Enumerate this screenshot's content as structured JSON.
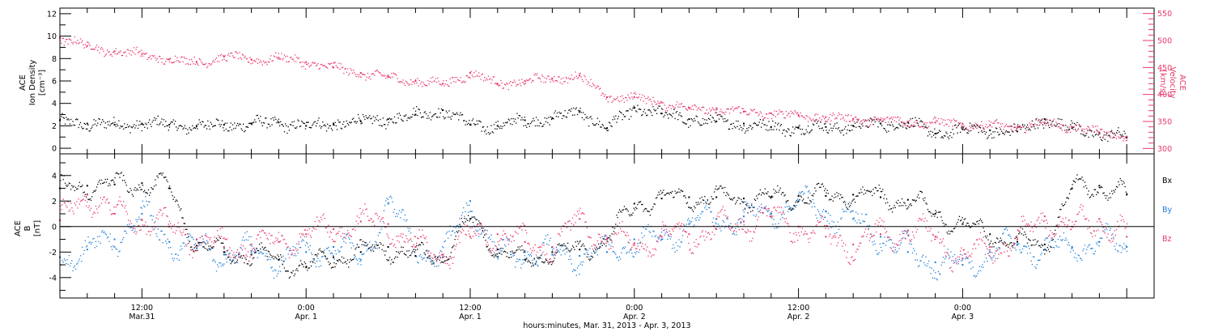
{
  "figure": {
    "xaxis_title": "hours:minutes, Mar. 31, 2013 - Apr.  3, 2013",
    "xticks": [
      {
        "hours": 12,
        "time": "12:00",
        "date": "Mar.31"
      },
      {
        "hours": 24,
        "time": "0:00",
        "date": "Apr. 1"
      },
      {
        "hours": 36,
        "time": "12:00",
        "date": "Apr. 1"
      },
      {
        "hours": 48,
        "time": "0:00",
        "date": "Apr. 2"
      },
      {
        "hours": 60,
        "time": "12:00",
        "date": "Apr. 2"
      },
      {
        "hours": 72,
        "time": "0:00",
        "date": "Apr. 3"
      }
    ]
  },
  "colors": {
    "density": "#000000",
    "velocity": "#e8386a",
    "bx": "#000000",
    "by": "#1e7fd6",
    "bz": "#e8386a"
  },
  "chart_data": [
    {
      "type": "scatter",
      "panel": "top",
      "x_units": "hours since Mar. 31, 2013 0:00",
      "xlim": [
        6,
        86
      ],
      "left_axis": {
        "label_lines": [
          "ACE",
          "Ion Density",
          "[cm⁻³]"
        ],
        "ylim": [
          -0.5,
          12.5
        ],
        "ticks": [
          0,
          2,
          4,
          6,
          8,
          10,
          12
        ]
      },
      "right_axis": {
        "label_lines": [
          "ACE",
          "Velocity",
          "[km/s]"
        ],
        "ylim": [
          290,
          560
        ],
        "ticks": [
          300,
          350,
          400,
          450,
          500,
          550
        ]
      },
      "series": [
        {
          "key": "density",
          "axis": "left",
          "x": [
            6,
            8,
            10,
            12,
            14,
            16,
            18,
            20,
            22,
            24,
            26,
            28,
            30,
            32,
            34,
            36,
            38,
            40,
            42,
            44,
            46,
            48,
            50,
            52,
            54,
            56,
            58,
            60,
            62,
            64,
            66,
            68,
            70,
            72,
            74,
            76,
            78,
            80,
            82,
            84
          ],
          "y": [
            2.5,
            2.2,
            2.1,
            2.2,
            2.1,
            2.0,
            2.1,
            2.2,
            2.3,
            2.0,
            2.2,
            2.4,
            2.6,
            3.0,
            3.4,
            2.1,
            2.0,
            2.5,
            2.7,
            3.3,
            1.8,
            3.6,
            3.1,
            2.6,
            2.4,
            2.2,
            1.9,
            1.8,
            1.9,
            2.0,
            2.2,
            2.3,
            1.3,
            1.7,
            1.6,
            1.5,
            2.6,
            1.8,
            1.3,
            1.0
          ]
        },
        {
          "key": "velocity",
          "axis": "right",
          "x": [
            6,
            8,
            10,
            12,
            14,
            16,
            18,
            20,
            22,
            24,
            26,
            28,
            30,
            32,
            34,
            36,
            38,
            40,
            42,
            44,
            46,
            48,
            50,
            52,
            54,
            56,
            58,
            60,
            62,
            64,
            66,
            68,
            70,
            72,
            74,
            76,
            78,
            80,
            82,
            84
          ],
          "y": [
            505,
            490,
            480,
            475,
            465,
            460,
            470,
            465,
            468,
            460,
            450,
            440,
            432,
            425,
            420,
            440,
            420,
            425,
            430,
            435,
            395,
            395,
            385,
            375,
            372,
            368,
            365,
            362,
            358,
            355,
            353,
            350,
            348,
            345,
            343,
            340,
            348,
            340,
            330,
            322
          ]
        }
      ]
    },
    {
      "type": "scatter",
      "panel": "bottom",
      "x_units": "hours since Mar. 31, 2013 0:00",
      "xlim": [
        6,
        86
      ],
      "ylabel_lines": [
        "ACE",
        "B",
        "[nT]"
      ],
      "ylim": [
        -5.6,
        5.7
      ],
      "ticks": [
        -4,
        -2,
        0,
        2,
        4
      ],
      "zero_line": true,
      "legend": [
        "Bx",
        "By",
        "Bz"
      ],
      "legend_placement": "right",
      "series": [
        {
          "key": "bx",
          "name": "Bx",
          "x": [
            6,
            8,
            10,
            12,
            14,
            16,
            18,
            20,
            22,
            24,
            26,
            28,
            30,
            32,
            34,
            36,
            38,
            40,
            42,
            44,
            46,
            48,
            50,
            52,
            54,
            56,
            58,
            60,
            62,
            64,
            66,
            68,
            70,
            72,
            74,
            76,
            78,
            80,
            82,
            84
          ],
          "y": [
            3.0,
            3.2,
            3.3,
            3.4,
            3.0,
            -1.5,
            -2.0,
            -2.2,
            -2.6,
            -3.2,
            -2.4,
            -2.0,
            -1.6,
            -2.3,
            -2.2,
            0.6,
            -1.8,
            -2.6,
            -2.0,
            -1.8,
            -1.0,
            1.8,
            2.2,
            2.3,
            2.3,
            2.2,
            2.3,
            2.4,
            2.4,
            2.5,
            2.3,
            2.1,
            1.0,
            0.2,
            -0.6,
            -1.2,
            -1.4,
            3.0,
            3.2,
            2.5
          ]
        },
        {
          "key": "by",
          "name": "By",
          "x": [
            6,
            8,
            10,
            12,
            14,
            16,
            18,
            20,
            22,
            24,
            26,
            28,
            30,
            32,
            34,
            36,
            38,
            40,
            42,
            44,
            46,
            48,
            50,
            52,
            54,
            56,
            58,
            60,
            62,
            64,
            66,
            68,
            70,
            72,
            74,
            76,
            78,
            80,
            82,
            84
          ],
          "y": [
            -2.4,
            -1.8,
            -1.0,
            1.0,
            -1.2,
            -1.7,
            -2.2,
            -2.0,
            -2.6,
            -2.0,
            -1.6,
            -2.6,
            1.8,
            -1.6,
            -2.4,
            2.0,
            -2.4,
            -2.0,
            -2.2,
            -2.3,
            -2.0,
            -1.0,
            -1.0,
            0.2,
            0.6,
            0.8,
            1.0,
            2.0,
            1.2,
            0.6,
            -0.8,
            -2.0,
            -2.8,
            -3.0,
            -2.0,
            -1.4,
            -1.8,
            -1.6,
            -1.2,
            -1.6
          ]
        },
        {
          "key": "bz",
          "name": "Bz",
          "x": [
            6,
            8,
            10,
            12,
            14,
            16,
            18,
            20,
            22,
            24,
            26,
            28,
            30,
            32,
            34,
            36,
            38,
            40,
            42,
            44,
            46,
            48,
            50,
            52,
            54,
            56,
            58,
            60,
            62,
            64,
            66,
            68,
            70,
            72,
            74,
            76,
            78,
            80,
            82,
            84
          ],
          "y": [
            0.5,
            2.5,
            1.0,
            0.5,
            0.0,
            -1.0,
            -1.6,
            -1.4,
            -1.2,
            -0.6,
            -0.2,
            0.4,
            0.2,
            -1.6,
            -2.2,
            -0.8,
            -0.6,
            -1.2,
            -1.6,
            0.6,
            -1.0,
            -1.3,
            -0.8,
            -0.6,
            -0.2,
            0.4,
            0.8,
            0.0,
            -0.8,
            -1.4,
            -0.6,
            -0.3,
            -0.8,
            -2.5,
            -1.6,
            -1.0,
            0.8,
            0.0,
            0.6,
            -0.8
          ]
        }
      ]
    }
  ]
}
